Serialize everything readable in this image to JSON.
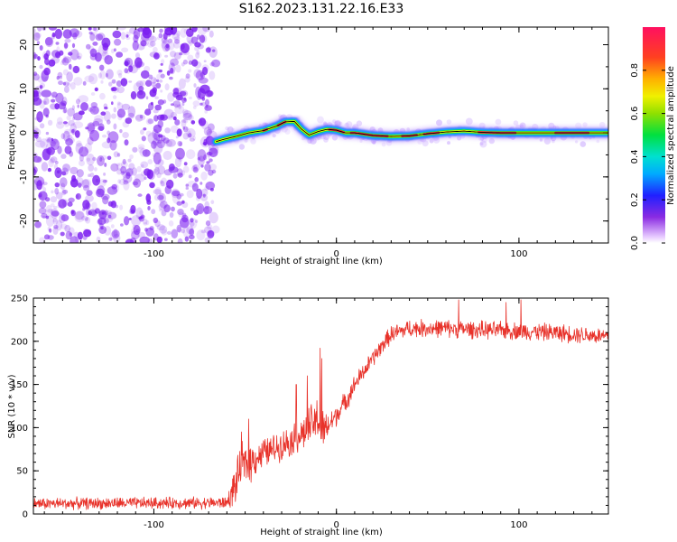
{
  "title": "S162.2023.131.22.16.E33",
  "colors": {
    "snr_line": "#e8322a",
    "speckle": "#7a1cf0",
    "ridge_center": "#e8283a",
    "background": "#ffffff"
  },
  "chart_data": [
    {
      "type": "heatmap",
      "xlabel": "Height of straight line (km)",
      "ylabel": "Frequency (Hz)",
      "xlim": [
        -166,
        149
      ],
      "ylim": [
        -25,
        24
      ],
      "xticks": [
        -100,
        0,
        100
      ],
      "xtick_labels": [
        "-100",
        "0",
        "100"
      ],
      "yticks": [
        -20,
        -10,
        0,
        10,
        20
      ],
      "ytick_labels": [
        "-20",
        "-10",
        "0",
        "10",
        "20"
      ],
      "noise_region_x": [
        -166,
        -66
      ],
      "ridge": {
        "x": [
          -66,
          -62,
          -55,
          -48,
          -40,
          -33,
          -28,
          -23,
          -19,
          -15,
          -10,
          -5,
          0,
          5,
          10,
          20,
          30,
          40,
          50,
          60,
          70,
          80,
          90,
          100,
          120,
          149
        ],
        "freq": [
          -2,
          -1.5,
          -0.8,
          0,
          0.5,
          1.5,
          2.5,
          2.6,
          0.8,
          -0.5,
          0.3,
          0.8,
          0.6,
          0,
          0,
          -0.6,
          -0.8,
          -0.7,
          -0.2,
          0.2,
          0.4,
          0.1,
          0,
          0,
          0,
          0
        ]
      },
      "colorbar": {
        "label": "Normalized spectral amplitude",
        "range": [
          0,
          1
        ],
        "ticks": [
          0.0,
          0.2,
          0.4,
          0.6,
          0.8
        ],
        "tick_labels": [
          "0.0",
          "0.2",
          "0.4",
          "0.6",
          "0.8"
        ]
      }
    },
    {
      "type": "line",
      "xlabel": "Height of straight line (km)",
      "ylabel": "SNR (10 * v/v)",
      "xlim": [
        -166,
        149
      ],
      "ylim": [
        0,
        250
      ],
      "xticks": [
        -100,
        0,
        100
      ],
      "xtick_labels": [
        "-100",
        "0",
        "100"
      ],
      "yticks": [
        0,
        50,
        100,
        150,
        200,
        250
      ],
      "ytick_labels": [
        "0",
        "50",
        "100",
        "150",
        "200",
        "250"
      ],
      "grid": false,
      "series": [
        {
          "trend_x": [
            -166,
            -60,
            -56,
            -52,
            -48,
            -44,
            -40,
            -30,
            -20,
            -15,
            -10,
            -8,
            -5,
            0,
            5,
            10,
            15,
            20,
            25,
            30,
            40,
            60,
            80,
            100,
            120,
            140,
            149
          ],
          "trend_y": [
            12,
            13,
            30,
            55,
            60,
            65,
            70,
            80,
            90,
            100,
            110,
            95,
            100,
            115,
            130,
            150,
            165,
            180,
            195,
            208,
            215,
            215,
            213,
            212,
            210,
            207,
            205
          ],
          "noise_amplitude": [
            8,
            8,
            25,
            30,
            30,
            22,
            20,
            20,
            22,
            28,
            32,
            30,
            20,
            15,
            14,
            13,
            12,
            12,
            12,
            12,
            12,
            12,
            12,
            12,
            12,
            12,
            12
          ],
          "spikes": [
            {
              "x": -52,
              "y": 95
            },
            {
              "x": -48,
              "y": 110
            },
            {
              "x": -40,
              "y": 85
            },
            {
              "x": -9,
              "y": 192
            },
            {
              "x": -8,
              "y": 180
            },
            {
              "x": -16,
              "y": 160
            },
            {
              "x": -22,
              "y": 150
            },
            {
              "x": 67,
              "y": 248
            },
            {
              "x": 93,
              "y": 245
            },
            {
              "x": 101,
              "y": 248
            }
          ]
        }
      ]
    }
  ]
}
